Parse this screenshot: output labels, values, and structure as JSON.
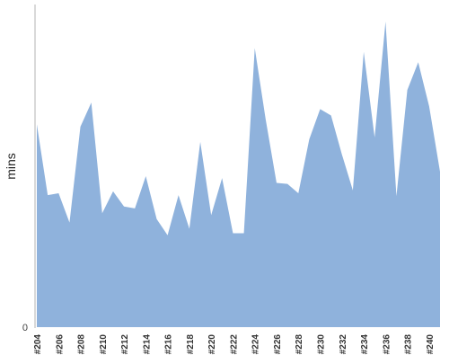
{
  "chart_data": {
    "type": "area",
    "ylabel": "mins",
    "x": [
      "#204",
      "#205",
      "#206",
      "#207",
      "#208",
      "#209",
      "#210",
      "#211",
      "#212",
      "#213",
      "#214",
      "#215",
      "#216",
      "#217",
      "#218",
      "#219",
      "#220",
      "#221",
      "#222",
      "#223",
      "#224",
      "#225",
      "#226",
      "#227",
      "#228",
      "#229",
      "#230",
      "#231",
      "#232",
      "#233",
      "#234",
      "#235",
      "#236",
      "#237",
      "#238",
      "#239",
      "#240",
      "#241"
    ],
    "x_tick_labels": [
      "#204",
      "#206",
      "#208",
      "#210",
      "#212",
      "#214",
      "#216",
      "#218",
      "#220",
      "#222",
      "#224",
      "#226",
      "#228",
      "#230",
      "#232",
      "#234",
      "#236",
      "#238",
      "#240"
    ],
    "series": [
      {
        "color": "#8fb2dc",
        "values": [
          62.9,
          40.9,
          41.5,
          32.4,
          62.1,
          69.6,
          35.3,
          42.1,
          37.4,
          36.8,
          46.8,
          33.5,
          28.5,
          40.9,
          30.5,
          57.4,
          34.7,
          46.2,
          29.1,
          29.1,
          86.5,
          64.4,
          44.7,
          44.4,
          41.5,
          58.2,
          67.6,
          65.6,
          53.5,
          42.4,
          85.3,
          58.8,
          94.7,
          40.6,
          73.5,
          82.1,
          68.5,
          48.2
        ]
      }
    ],
    "y_ticks": [
      0
    ],
    "ylim": [
      0,
      100
    ],
    "grid": false,
    "legend": "none"
  }
}
